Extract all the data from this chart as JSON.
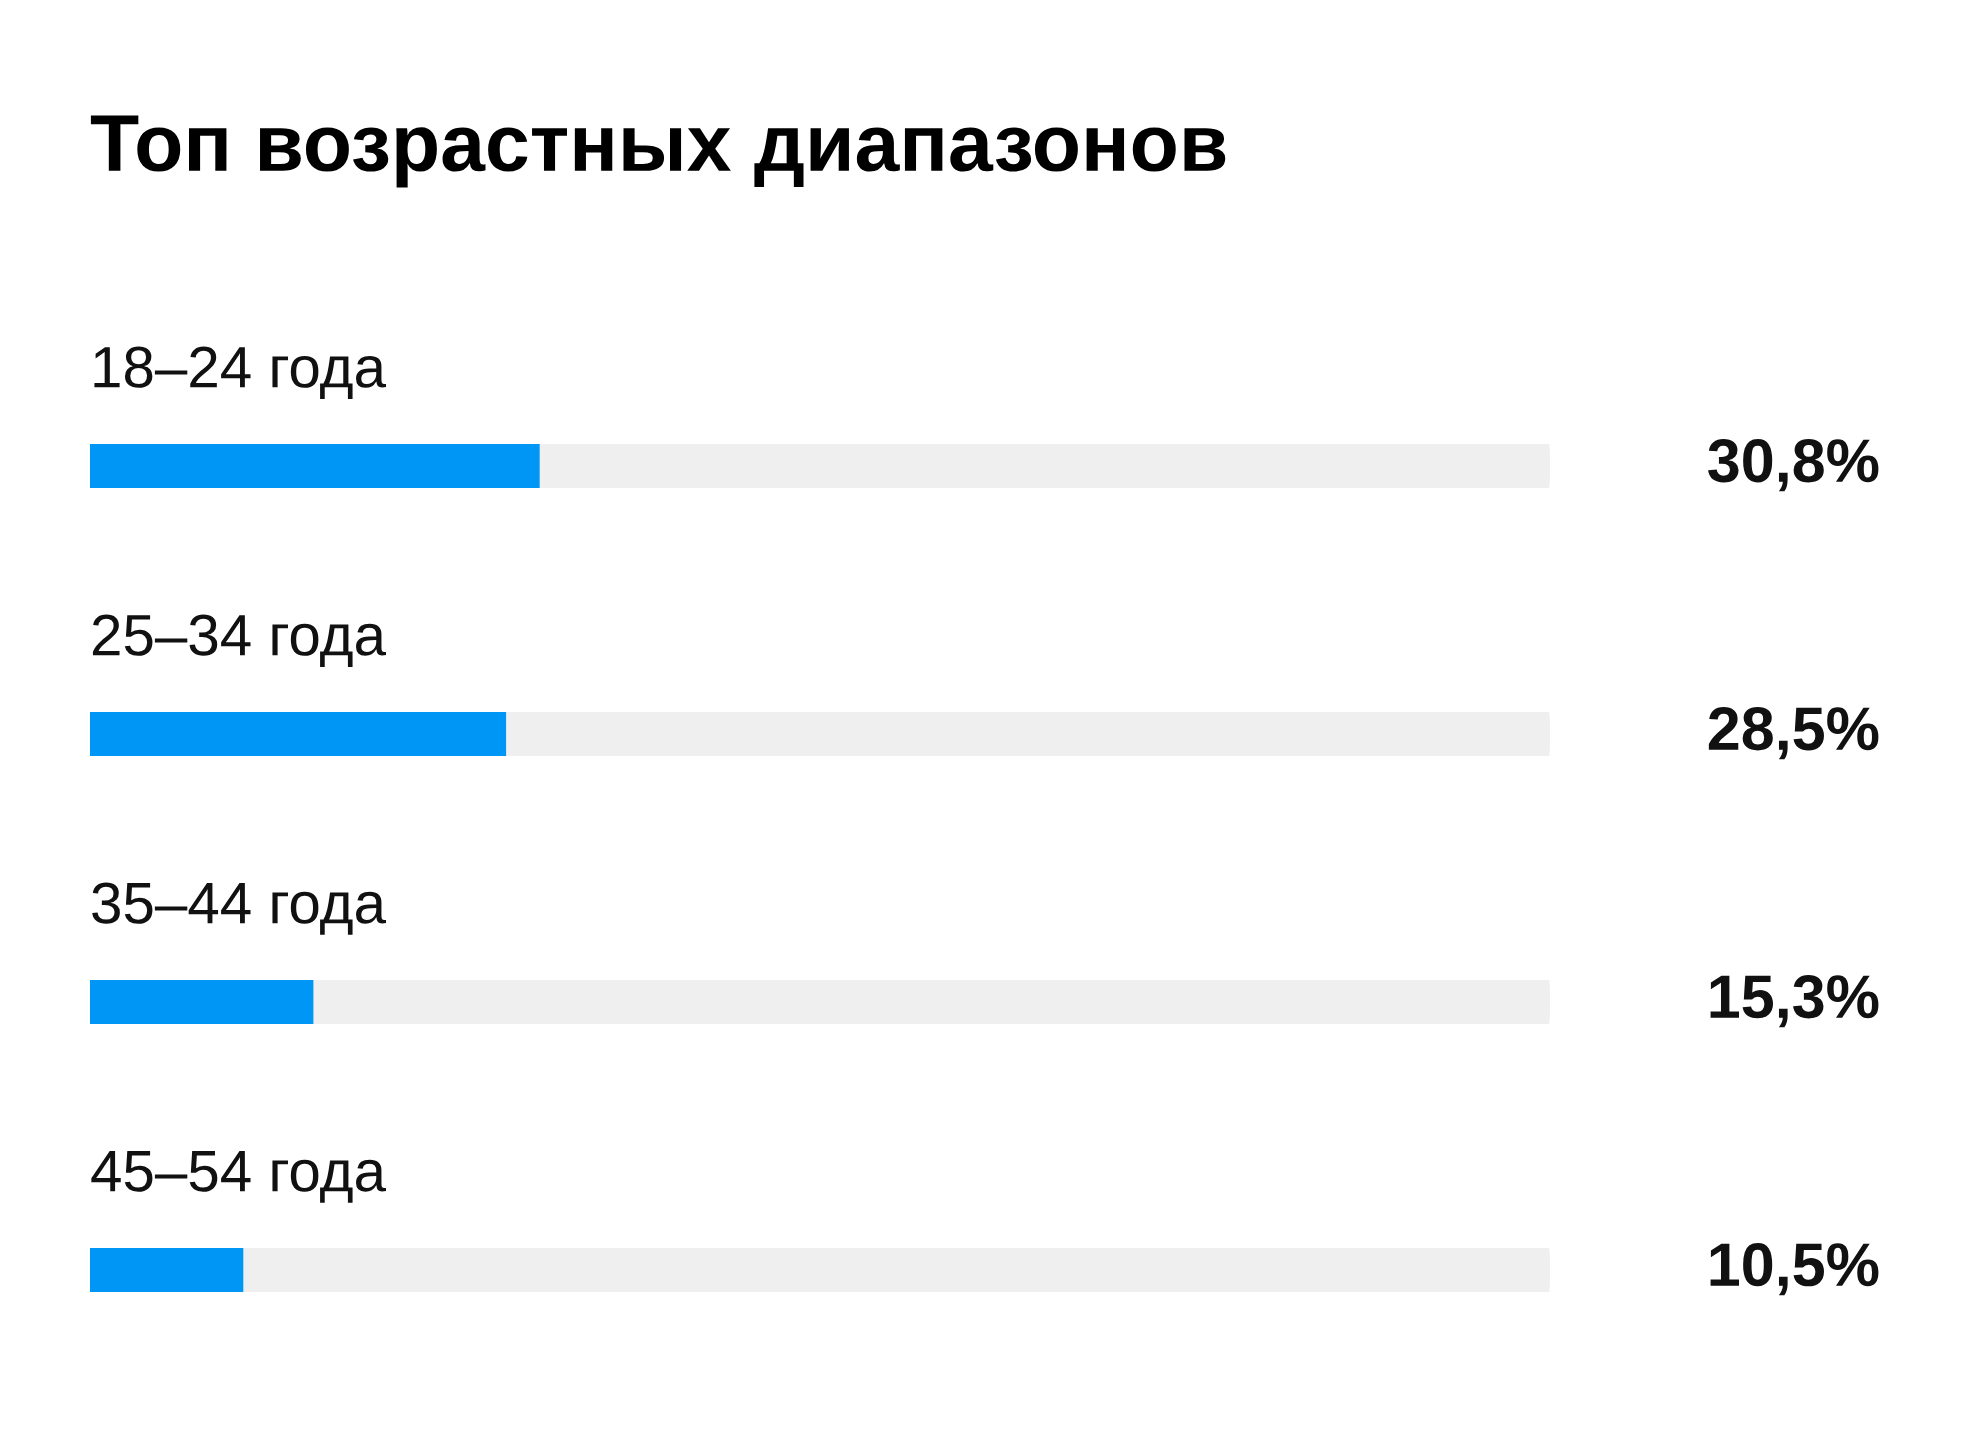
{
  "chart_data": {
    "type": "bar",
    "orientation": "horizontal",
    "title": "Топ возрастных диапазонов",
    "categories": [
      "18–24 года",
      "25–34 года",
      "35–44 года",
      "45–54 года"
    ],
    "values": [
      30.8,
      28.5,
      15.3,
      10.5
    ],
    "value_labels": [
      "30,8%",
      "28,5%",
      "15,3%",
      "10,5%"
    ],
    "color": "#0096f5",
    "xlim": [
      0,
      100
    ]
  }
}
